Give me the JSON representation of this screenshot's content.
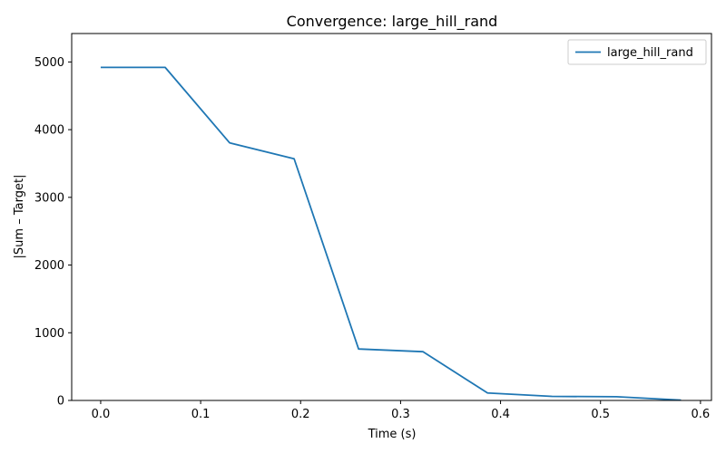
{
  "chart_data": {
    "type": "line",
    "title": "Convergence: large_hill_rand",
    "xlabel": "Time (s)",
    "ylabel": "|Sum – Target|",
    "xlim": [
      -0.029,
      0.611
    ],
    "ylim": [
      0,
      5420
    ],
    "xticks": [
      0.0,
      0.1,
      0.2,
      0.3,
      0.4,
      0.5,
      0.6
    ],
    "xtick_labels": [
      "0.0",
      "0.1",
      "0.2",
      "0.3",
      "0.4",
      "0.5",
      "0.6"
    ],
    "yticks": [
      0,
      1000,
      2000,
      3000,
      4000,
      5000
    ],
    "ytick_labels": [
      "0",
      "1000",
      "2000",
      "3000",
      "4000",
      "5000"
    ],
    "grid": false,
    "legend_position": "top-right",
    "series": [
      {
        "name": "large_hill_rand",
        "color": "#1f77b4",
        "x": [
          0.0,
          0.0645,
          0.129,
          0.1935,
          0.258,
          0.3225,
          0.387,
          0.4515,
          0.516,
          0.5805
        ],
        "y": [
          4920,
          4920,
          3805,
          3570,
          760,
          720,
          110,
          60,
          55,
          5
        ]
      }
    ]
  }
}
